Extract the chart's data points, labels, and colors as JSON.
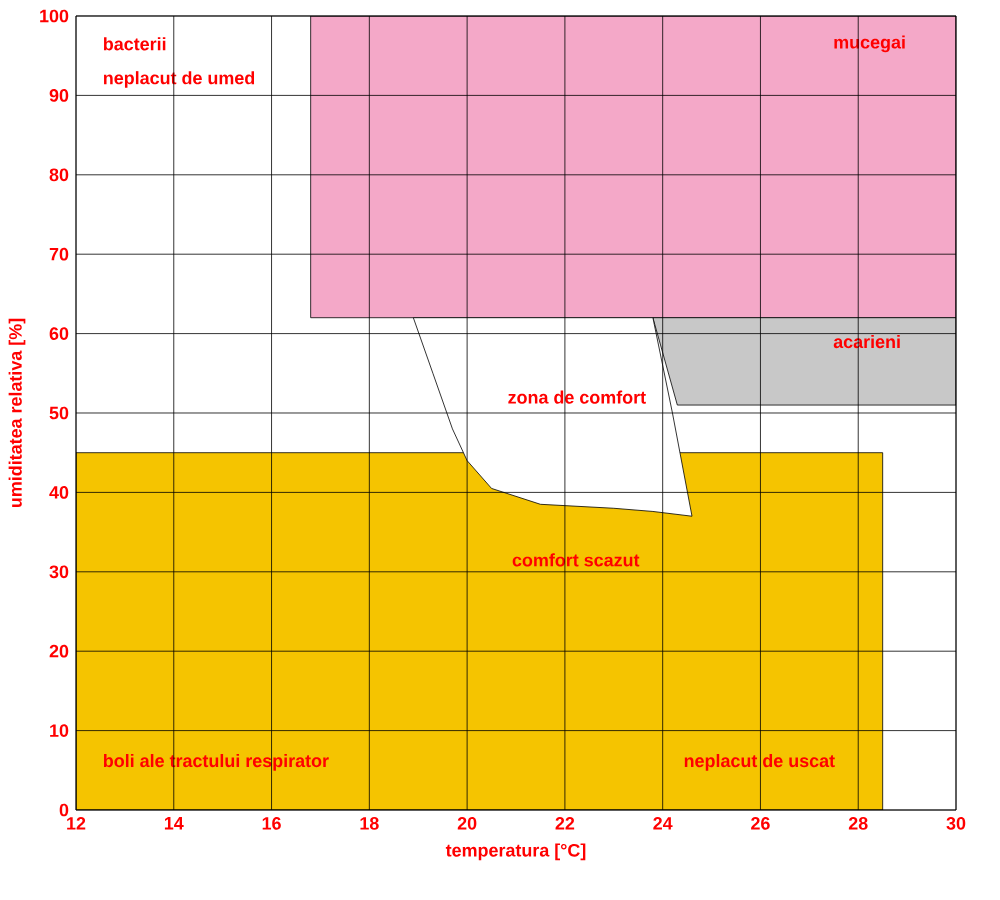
{
  "chart_data": {
    "type": "area",
    "xlabel": "temperatura [°C]",
    "ylabel": "umiditatea relativa [%]",
    "xlim": [
      12,
      30
    ],
    "ylim": [
      0,
      100
    ],
    "xticks": [
      12,
      14,
      16,
      18,
      20,
      22,
      24,
      26,
      28,
      30
    ],
    "yticks": [
      0,
      10,
      20,
      30,
      40,
      50,
      60,
      70,
      80,
      90,
      100
    ],
    "grid": true,
    "series": [
      {
        "color": "#f5c400",
        "x": [
          12,
          28.5,
          28.5,
          12
        ],
        "values": [
          45,
          45,
          0,
          0
        ]
      },
      {
        "color": "#f4a8c8",
        "x": [
          16.8,
          30,
          30,
          16.8
        ],
        "values": [
          100,
          100,
          62,
          62
        ]
      },
      {
        "color": "#c8c8c8",
        "x": [
          23.8,
          30,
          30,
          24.3
        ],
        "values": [
          62,
          62,
          51,
          51
        ]
      },
      {
        "color": "#ffffff",
        "x": [
          18.9,
          23.8,
          24.2,
          24.6,
          23.8,
          23,
          21.5,
          20.5,
          20,
          19.7,
          19.3
        ],
        "values": [
          62,
          62,
          50,
          37,
          37.6,
          38,
          38.5,
          40.5,
          44,
          48,
          55
        ]
      }
    ],
    "annotations": [
      "bacterii",
      "neplacut de umed",
      "mucegai",
      "acarieni",
      "zona de comfort",
      "comfort scazut",
      "boli ale tractului respirator",
      "neplacut de uscat"
    ]
  }
}
